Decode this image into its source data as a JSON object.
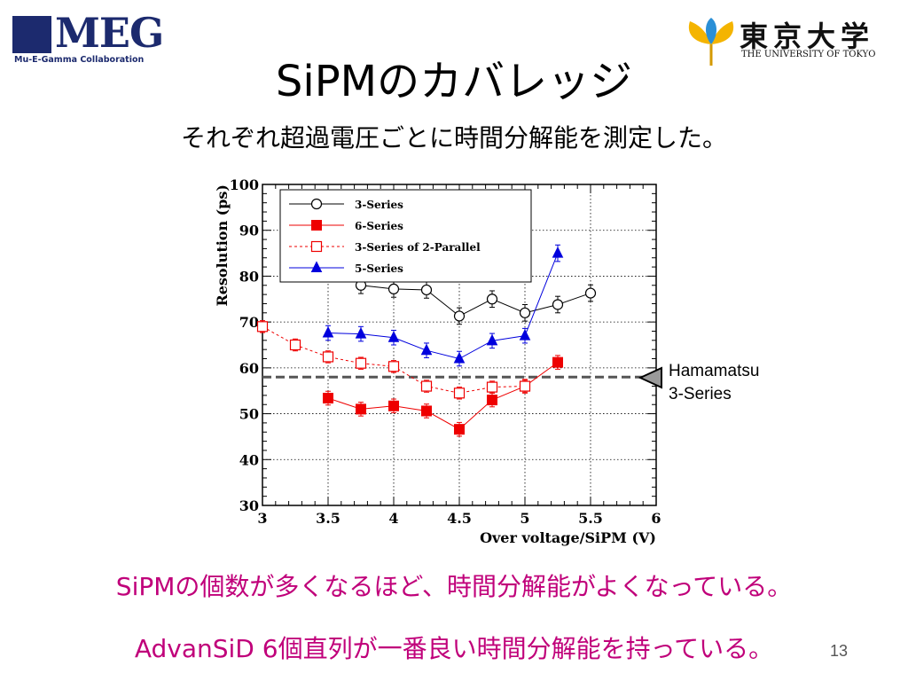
{
  "logos": {
    "meg_text": "MEG",
    "meg_subtitle": "Mu-E-Gamma Collaboration",
    "tokyo_text": "東京大学",
    "tokyo_subtitle": "THE UNIVERSITY OF TOKYO"
  },
  "slide": {
    "title": "SiPMのカバレッジ",
    "subtitle": "それぞれ超過電圧ごとに時間分解能を測定した。",
    "bottom_line1": "SiPMの個数が多くなるほど、時間分解能がよくなっている。",
    "bottom_line2": "AdvanSiD 6個直列が一番良い時間分解能を持っている。",
    "page_number": "13"
  },
  "annotation": {
    "line1": "Hamamatsu",
    "line2": "3-Series",
    "value": 58
  },
  "chart_data": {
    "type": "scatter",
    "xlabel": "Over voltage/SiPM (V)",
    "ylabel": "Resolution (ps)",
    "xlim": [
      3,
      6
    ],
    "ylim": [
      30,
      100
    ],
    "xticks": [
      "3",
      "3.5",
      "4",
      "4.5",
      "5",
      "5.5",
      "6"
    ],
    "yticks": [
      "30",
      "40",
      "50",
      "60",
      "70",
      "80",
      "90",
      "100"
    ],
    "grid": true,
    "legend_position": "top-left",
    "series": [
      {
        "name": "3-Series",
        "color": "#000000",
        "marker": "open-circle",
        "line": "solid",
        "points": [
          [
            3.75,
            78
          ],
          [
            4.0,
            77.2
          ],
          [
            4.25,
            77
          ],
          [
            4.5,
            71.3
          ],
          [
            4.75,
            75
          ],
          [
            5.0,
            72
          ],
          [
            5.25,
            73.8
          ],
          [
            5.5,
            76.3
          ]
        ],
        "errors": [
          1.8,
          1.8,
          1.8,
          1.8,
          1.8,
          1.8,
          1.8,
          1.8
        ]
      },
      {
        "name": "6-Series",
        "color": "#ee0000",
        "marker": "filled-square",
        "line": "solid",
        "points": [
          [
            3.5,
            53.4
          ],
          [
            3.75,
            51
          ],
          [
            4.0,
            51.7
          ],
          [
            4.25,
            50.6
          ],
          [
            4.5,
            46.6
          ],
          [
            4.75,
            53
          ],
          [
            5.0,
            56
          ],
          [
            5.25,
            61.2
          ]
        ],
        "errors": [
          1.5,
          1.5,
          1.5,
          1.5,
          1.5,
          1.5,
          1.5,
          1.5
        ]
      },
      {
        "name": "3-Series of 2-Parallel",
        "color": "#ee0000",
        "marker": "open-square",
        "line": "dashed",
        "points": [
          [
            3.0,
            69
          ],
          [
            3.25,
            65
          ],
          [
            3.5,
            62.4
          ],
          [
            3.75,
            61
          ],
          [
            4.0,
            60.3
          ],
          [
            4.25,
            56
          ],
          [
            4.5,
            54.5
          ],
          [
            4.75,
            55.8
          ],
          [
            5.0,
            56
          ]
        ],
        "errors": [
          1.3,
          1.3,
          1.3,
          1.3,
          1.3,
          1.3,
          1.3,
          1.3,
          1.3
        ]
      },
      {
        "name": "5-Series",
        "color": "#0000dd",
        "marker": "filled-triangle",
        "line": "solid",
        "points": [
          [
            3.5,
            67.6
          ],
          [
            3.75,
            67.4
          ],
          [
            4.0,
            66.6
          ],
          [
            4.25,
            63.8
          ],
          [
            4.5,
            62
          ],
          [
            4.75,
            65.9
          ],
          [
            5.0,
            67
          ],
          [
            5.25,
            85
          ]
        ],
        "errors": [
          1.6,
          1.6,
          1.6,
          1.6,
          1.6,
          1.6,
          1.6,
          1.8
        ]
      }
    ]
  }
}
